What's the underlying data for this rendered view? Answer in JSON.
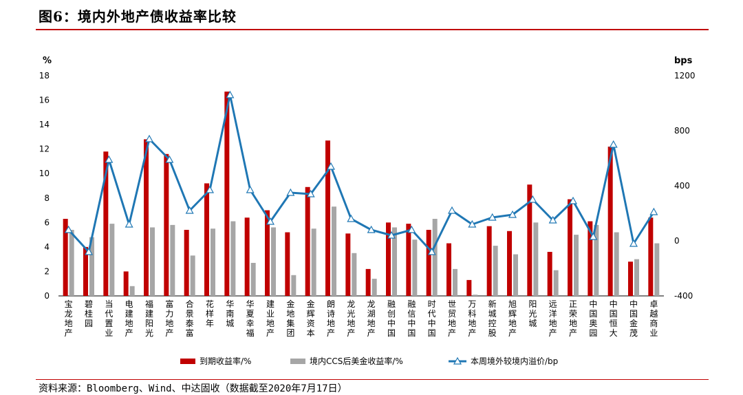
{
  "title": "图6：境内外地产债收益率比较",
  "source": "资料来源：Bloomberg、Wind、中达固收（数据截至2020年7月17日）",
  "chart_data": {
    "type": "bar",
    "left_unit": "%",
    "right_unit": "bps",
    "ylim_left": [
      0,
      18
    ],
    "yticks_left": [
      0,
      2,
      4,
      6,
      8,
      10,
      12,
      14,
      16,
      18
    ],
    "ylim_right": [
      -400,
      1200
    ],
    "yticks_right": [
      -400,
      0,
      400,
      800,
      1200
    ],
    "grid": false,
    "legend_position": "bottom",
    "categories": [
      "宝龙地产",
      "碧桂园",
      "当代置业",
      "电建地产",
      "福建阳光",
      "富力地产",
      "合景泰富",
      "花样年",
      "华南城",
      "华夏幸福",
      "建业地产",
      "金地集团",
      "金辉资本",
      "朗诗地产",
      "龙光地产",
      "龙湖地产",
      "融创中国",
      "融信中国",
      "时代中国",
      "世贸地产",
      "万科地产",
      "新城控股",
      "旭辉地产",
      "阳光城",
      "远洋地产",
      "正荣地产",
      "中国奥园",
      "中国恒大",
      "中国金茂",
      "卓越商业"
    ],
    "series": [
      {
        "name": "到期收益率/%",
        "type": "bar",
        "axis": "left",
        "color": "#c00000",
        "values": [
          6.3,
          4.0,
          11.8,
          2.0,
          12.8,
          11.6,
          5.4,
          9.2,
          16.7,
          6.4,
          7.0,
          5.2,
          8.9,
          12.7,
          5.1,
          2.2,
          6.0,
          5.9,
          5.4,
          4.3,
          1.3,
          5.7,
          5.3,
          9.1,
          3.6,
          7.9,
          6.1,
          12.2,
          2.8,
          6.4
        ]
      },
      {
        "name": "境内CCS后美金收益率/%",
        "type": "bar",
        "axis": "left",
        "color": "#a6a6a6",
        "values": [
          5.4,
          4.8,
          5.9,
          0.8,
          5.6,
          5.8,
          3.3,
          5.5,
          6.1,
          2.7,
          5.6,
          1.7,
          5.5,
          7.3,
          3.5,
          1.4,
          5.6,
          4.6,
          6.3,
          2.2,
          0.1,
          4.1,
          3.4,
          6.0,
          2.1,
          5.0,
          5.8,
          5.2,
          3.0,
          4.3
        ]
      },
      {
        "name": "本周境外较境内溢价/bp",
        "type": "line",
        "axis": "right",
        "color": "#1f77b4",
        "values": [
          80,
          -80,
          590,
          120,
          740,
          590,
          220,
          370,
          1060,
          370,
          140,
          350,
          340,
          540,
          160,
          80,
          40,
          80,
          -80,
          220,
          120,
          170,
          190,
          300,
          150,
          290,
          30,
          700,
          -20,
          210
        ]
      }
    ]
  }
}
